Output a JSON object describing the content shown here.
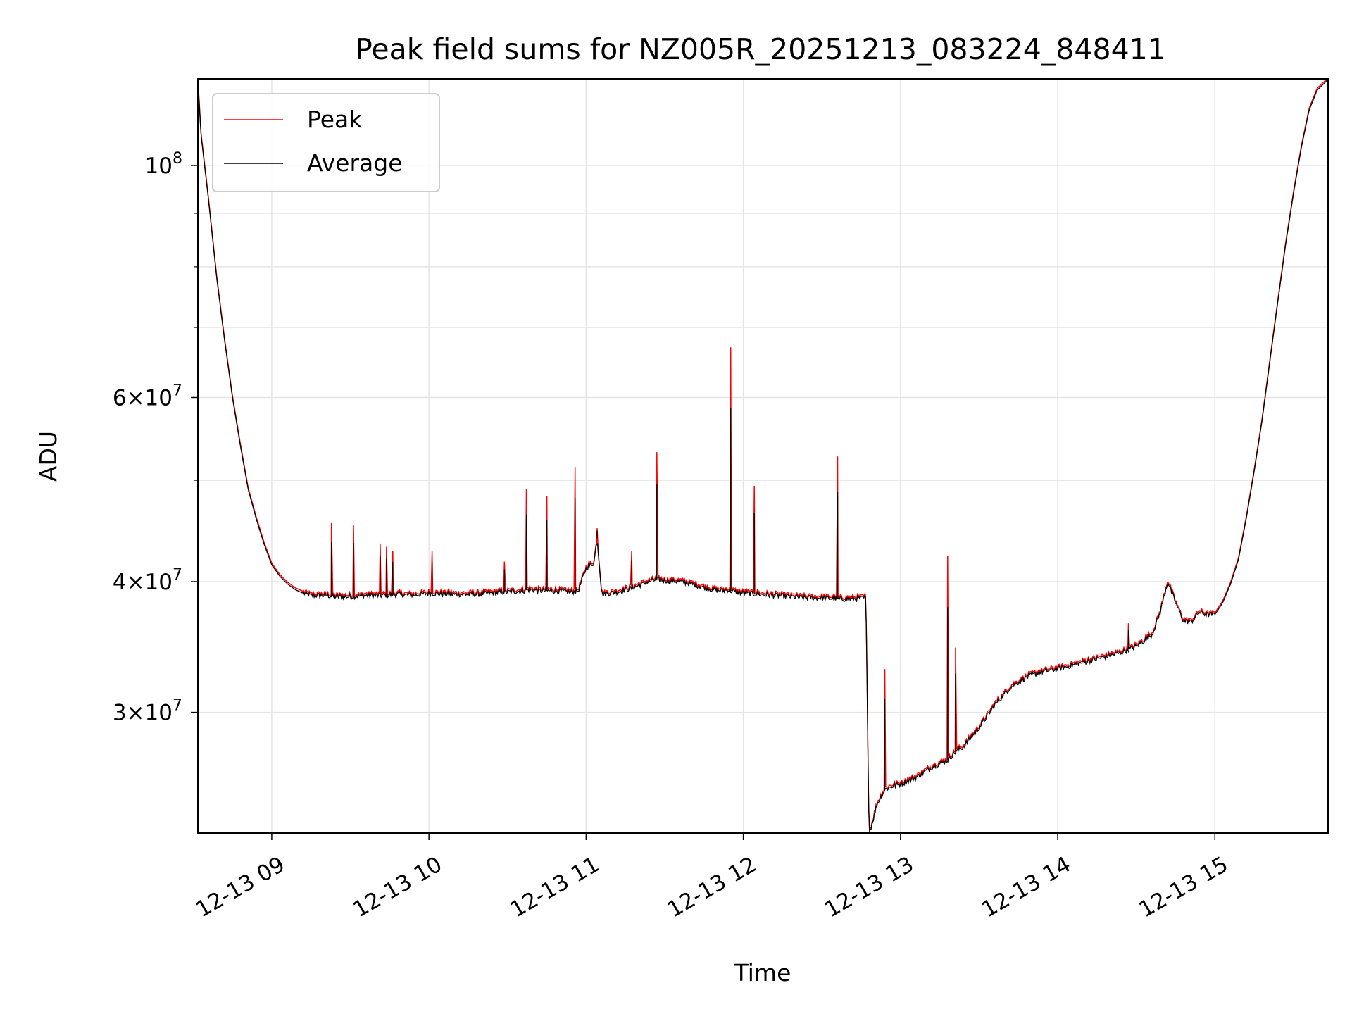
{
  "chart_data": {
    "type": "line",
    "title": "Peak field sums for NZ005R_20251213_083224_848411",
    "xlabel": "Time",
    "ylabel": "ADU",
    "yscale": "log",
    "xlim": [
      8.53,
      15.72
    ],
    "ylim": [
      23000000,
      121000000
    ],
    "grid": true,
    "legend": {
      "position": "upper left",
      "entries": [
        "Peak",
        "Average"
      ]
    },
    "x_ticks": [
      {
        "value": 9,
        "label": "12-13 09"
      },
      {
        "value": 10,
        "label": "12-13 10"
      },
      {
        "value": 11,
        "label": "12-13 11"
      },
      {
        "value": 12,
        "label": "12-13 12"
      },
      {
        "value": 13,
        "label": "12-13 13"
      },
      {
        "value": 14,
        "label": "12-13 14"
      },
      {
        "value": 15,
        "label": "12-13 15"
      }
    ],
    "y_ticks": [
      {
        "value": 30000000,
        "mant": "3",
        "exp": "7"
      },
      {
        "value": 40000000,
        "mant": "4",
        "exp": "7"
      },
      {
        "value": 60000000,
        "mant": "6",
        "exp": "7"
      },
      {
        "value": 100000000,
        "mant": "",
        "exp": "8"
      }
    ],
    "y_minor_ticks": [
      50000000,
      70000000,
      80000000,
      90000000
    ],
    "x_unit": "hours (decimal, 2025-12-13)",
    "series": [
      {
        "name": "Average",
        "color": "#000000",
        "x": [
          8.53,
          8.55,
          8.6,
          8.65,
          8.7,
          8.75,
          8.8,
          8.85,
          8.9,
          8.95,
          9.0,
          9.05,
          9.1,
          9.15,
          9.2,
          9.25,
          9.3,
          9.35,
          9.4,
          9.5,
          9.6,
          9.7,
          9.8,
          9.9,
          10.0,
          10.1,
          10.2,
          10.3,
          10.4,
          10.5,
          10.6,
          10.62,
          10.65,
          10.7,
          10.8,
          10.9,
          10.95,
          11.0,
          11.05,
          11.07,
          11.1,
          11.2,
          11.3,
          11.4,
          11.46,
          11.5,
          11.6,
          11.7,
          11.8,
          11.87,
          11.9,
          11.92,
          11.95,
          12.0,
          12.1,
          12.2,
          12.3,
          12.4,
          12.5,
          12.6,
          12.7,
          12.78,
          12.8,
          12.82,
          12.85,
          12.9,
          12.95,
          13.0,
          13.1,
          13.2,
          13.3,
          13.35,
          13.4,
          13.5,
          13.6,
          13.7,
          13.8,
          13.9,
          14.0,
          14.1,
          14.2,
          14.3,
          14.4,
          14.5,
          14.6,
          14.65,
          14.7,
          14.75,
          14.8,
          14.85,
          14.9,
          14.95,
          15.0,
          15.05,
          15.1,
          15.15,
          15.2,
          15.25,
          15.3,
          15.35,
          15.4,
          15.45,
          15.5,
          15.55,
          15.6,
          15.65,
          15.7,
          15.72
        ],
        "values": [
          121000000,
          107000000,
          92000000,
          78000000,
          68000000,
          60000000,
          54000000,
          49000000,
          46000000,
          43500000,
          41500000,
          40500000,
          39800000,
          39300000,
          39000000,
          38800000,
          38800000,
          38800000,
          38700000,
          38700000,
          38800000,
          38800000,
          38900000,
          38800000,
          39000000,
          38900000,
          38900000,
          38900000,
          39000000,
          39100000,
          39200000,
          39300000,
          39300000,
          39200000,
          39200000,
          39100000,
          39200000,
          41200000,
          41700000,
          44000000,
          38900000,
          39100000,
          39500000,
          40000000,
          40200000,
          40100000,
          40000000,
          39700000,
          39300000,
          39200000,
          39300000,
          39200000,
          39100000,
          39000000,
          38900000,
          38800000,
          38700000,
          38600000,
          38600000,
          38500000,
          38500000,
          38600000,
          23000000,
          23500000,
          24500000,
          25300000,
          25500000,
          25600000,
          26000000,
          26600000,
          27000000,
          27500000,
          27800000,
          29000000,
          30500000,
          31700000,
          32400000,
          32800000,
          33000000,
          33300000,
          33600000,
          33900000,
          34200000,
          34700000,
          35600000,
          37300000,
          40000000,
          38200000,
          36700000,
          36600000,
          37400000,
          37200000,
          37200000,
          38200000,
          39800000,
          42000000,
          46000000,
          51000000,
          57000000,
          65000000,
          74000000,
          84000000,
          94000000,
          104000000,
          113000000,
          118000000,
          120000000,
          121000000
        ]
      },
      {
        "name": "Peak",
        "color": "#ff0000",
        "spikes": [
          {
            "x": 9.38,
            "value": 45500000
          },
          {
            "x": 9.52,
            "value": 45300000
          },
          {
            "x": 9.69,
            "value": 43500000
          },
          {
            "x": 9.73,
            "value": 43200000
          },
          {
            "x": 9.77,
            "value": 42800000
          },
          {
            "x": 10.02,
            "value": 42800000
          },
          {
            "x": 10.48,
            "value": 41800000
          },
          {
            "x": 10.62,
            "value": 49000000
          },
          {
            "x": 10.75,
            "value": 48300000
          },
          {
            "x": 10.93,
            "value": 51500000
          },
          {
            "x": 11.07,
            "value": 45000000
          },
          {
            "x": 11.29,
            "value": 42800000
          },
          {
            "x": 11.45,
            "value": 53200000
          },
          {
            "x": 11.92,
            "value": 67000000
          },
          {
            "x": 12.07,
            "value": 49400000
          },
          {
            "x": 12.6,
            "value": 52700000
          },
          {
            "x": 12.9,
            "value": 33000000
          },
          {
            "x": 13.3,
            "value": 42300000
          },
          {
            "x": 13.35,
            "value": 34600000
          },
          {
            "x": 14.45,
            "value": 36500000
          }
        ]
      }
    ]
  }
}
